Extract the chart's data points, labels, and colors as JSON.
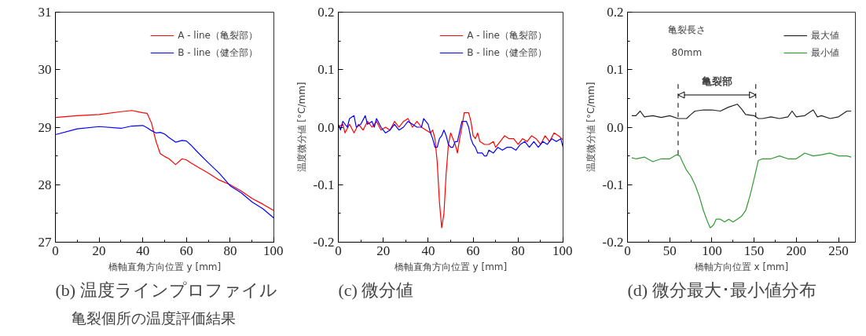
{
  "chart_data": [
    {
      "type": "line",
      "title": "(b) 温度ラインプロファイル",
      "xlabel": "橋軸直角方向位置 y [mm]",
      "xlim": [
        0,
        100
      ],
      "xticks": [
        0,
        20,
        40,
        60,
        80,
        100
      ],
      "ylim": [
        27,
        31
      ],
      "yticks": [
        27,
        28,
        29,
        30,
        31
      ],
      "legend": "top right",
      "grid": false,
      "annotations": [
        "亀裂個所の温度評価結果"
      ],
      "series": [
        {
          "name": "A - line（亀裂部）",
          "color": "#ff0000",
          "x": [
            0,
            10,
            20,
            30,
            35,
            40,
            42,
            44,
            46,
            48,
            50,
            52,
            55,
            58,
            60,
            62,
            65,
            70,
            75,
            80,
            85,
            90,
            95,
            100
          ],
          "values": [
            29.17,
            29.2,
            29.22,
            29.27,
            29.29,
            29.25,
            29.24,
            29.07,
            28.76,
            28.54,
            28.49,
            28.45,
            28.35,
            28.45,
            28.43,
            28.38,
            28.31,
            28.2,
            28.08,
            28.0,
            27.89,
            27.76,
            27.66,
            27.55
          ]
        },
        {
          "name": "B - line（健全部）",
          "color": "#0000ff",
          "x": [
            0,
            10,
            20,
            30,
            35,
            40,
            42,
            44,
            46,
            48,
            50,
            52,
            55,
            58,
            60,
            62,
            65,
            70,
            75,
            80,
            85,
            90,
            95,
            100
          ],
          "values": [
            28.87,
            28.97,
            29.01,
            28.98,
            29.02,
            29.03,
            28.99,
            28.94,
            28.9,
            28.91,
            28.88,
            28.82,
            28.74,
            28.77,
            28.76,
            28.69,
            28.57,
            28.38,
            28.2,
            27.98,
            27.86,
            27.7,
            27.58,
            27.42
          ]
        }
      ]
    },
    {
      "type": "line",
      "title": "(c) 微分値",
      "xlabel": "橋軸直角方向位置 y [mm]",
      "ylabel": "温度微分値 [°C/mm]",
      "xlim": [
        0,
        100
      ],
      "xticks": [
        0,
        20,
        40,
        60,
        80,
        100
      ],
      "ylim": [
        -0.2,
        0.2
      ],
      "yticks": [
        {
          "value": -0.2,
          "label": "-0.2"
        },
        {
          "value": -0.1,
          "label": "-0.1"
        },
        {
          "value": 0,
          "label": "0.0"
        },
        {
          "value": 0.1,
          "label": "0.1"
        },
        {
          "value": 0.2,
          "label": "0.2"
        }
      ],
      "legend": "top right",
      "grid": false,
      "series": [
        {
          "name": "A - line（亀裂部）",
          "color": "#ff0000",
          "x": [
            0,
            2,
            3,
            5,
            7,
            9,
            11,
            13,
            15,
            17,
            19,
            21,
            23,
            25,
            27,
            29,
            31,
            33,
            35,
            37,
            39,
            41,
            42,
            43,
            44,
            45,
            46,
            47,
            48,
            49,
            50,
            51,
            52,
            53,
            54,
            55,
            56,
            58,
            59,
            60,
            61,
            62,
            63,
            65,
            67,
            69,
            70,
            72,
            74,
            76,
            78,
            80,
            82,
            84,
            86,
            88,
            90,
            92,
            94,
            96,
            98,
            100
          ],
          "values": [
            0.0,
            0.005,
            -0.01,
            0.005,
            -0.01,
            0.005,
            -0.005,
            0.01,
            0.0,
            0.01,
            -0.005,
            0.0,
            -0.005,
            0.01,
            0.0,
            0.01,
            0.015,
            0.0,
            0.01,
            0.0,
            -0.005,
            -0.01,
            -0.005,
            -0.02,
            -0.06,
            -0.13,
            -0.175,
            -0.15,
            -0.08,
            -0.03,
            -0.01,
            -0.02,
            -0.03,
            -0.045,
            -0.02,
            0.0,
            0.025,
            0.025,
            0.01,
            -0.015,
            -0.02,
            -0.01,
            -0.025,
            -0.03,
            -0.03,
            -0.025,
            -0.035,
            -0.025,
            -0.015,
            -0.02,
            -0.02,
            -0.03,
            -0.02,
            -0.025,
            -0.015,
            -0.02,
            -0.03,
            -0.015,
            -0.025,
            -0.01,
            -0.015,
            -0.022
          ]
        },
        {
          "name": "B - line（健全部）",
          "color": "#0000ff",
          "x": [
            0,
            1,
            2,
            4,
            5,
            7,
            8,
            10,
            12,
            13,
            15,
            16,
            17,
            19,
            21,
            23,
            25,
            27,
            29,
            31,
            33,
            35,
            37,
            38,
            40,
            41,
            42,
            43,
            44,
            45,
            46,
            47,
            48,
            49,
            50,
            51,
            52,
            53,
            55,
            57,
            58,
            59,
            60,
            61,
            62,
            64,
            65,
            66,
            67,
            69,
            71,
            73,
            75,
            77,
            79,
            81,
            83,
            85,
            87,
            89,
            91,
            93,
            95,
            97,
            99,
            100
          ],
          "values": [
            0.005,
            -0.005,
            0.01,
            0.0,
            0.015,
            0.02,
            0.0,
            0.005,
            0.02,
            0.005,
            0.01,
            0.0,
            0.015,
            0.0,
            -0.01,
            -0.005,
            0.005,
            -0.005,
            0.0,
            0.01,
            0.005,
            0.0,
            0.0,
            0.015,
            0.005,
            -0.01,
            -0.02,
            -0.035,
            -0.035,
            -0.02,
            -0.015,
            -0.005,
            -0.015,
            -0.03,
            -0.035,
            -0.035,
            -0.025,
            -0.025,
            0.01,
            0.01,
            0.0,
            -0.02,
            -0.03,
            -0.035,
            -0.045,
            -0.045,
            -0.05,
            -0.05,
            -0.04,
            -0.045,
            -0.035,
            -0.04,
            -0.035,
            -0.035,
            -0.04,
            -0.03,
            -0.025,
            -0.035,
            -0.025,
            -0.035,
            -0.025,
            -0.03,
            -0.02,
            -0.025,
            -0.02,
            -0.035
          ]
        }
      ]
    },
    {
      "type": "line",
      "title": "(d) 微分最大･最小値分布",
      "xlabel": "橋軸方向位置 x [mm]",
      "ylabel": "温度微分値 [°C/mm]",
      "xlim": [
        0,
        270
      ],
      "xticks": [
        0,
        50,
        100,
        150,
        200,
        250
      ],
      "ylim": [
        -0.2,
        0.2
      ],
      "yticks": [
        {
          "value": -0.2,
          "label": "-0.2"
        },
        {
          "value": -0.1,
          "label": "-0.1"
        },
        {
          "value": 0,
          "label": "0.0"
        },
        {
          "value": 0.1,
          "label": "0.1"
        },
        {
          "value": 0.2,
          "label": "0.2"
        }
      ],
      "legend": "top right",
      "grid": false,
      "annotations": [
        "亀裂長さ",
        "80mm",
        "亀裂部"
      ],
      "ref_lines": [
        {
          "axis": "x",
          "value": 60,
          "line_style": "dashed",
          "color": "#000000"
        },
        {
          "axis": "x",
          "value": 152,
          "line_style": "dashed",
          "color": "#000000"
        }
      ],
      "series": [
        {
          "name": "最大値",
          "color": "#222222",
          "x": [
            5,
            10,
            15,
            20,
            30,
            40,
            50,
            60,
            70,
            75,
            80,
            90,
            100,
            110,
            120,
            130,
            135,
            140,
            150,
            155,
            160,
            170,
            180,
            190,
            195,
            200,
            210,
            220,
            225,
            230,
            240,
            250,
            260,
            265
          ],
          "values": [
            0.02,
            0.02,
            0.028,
            0.018,
            0.02,
            0.017,
            0.02,
            0.015,
            0.015,
            0.022,
            0.028,
            0.03,
            0.03,
            0.028,
            0.035,
            0.04,
            0.032,
            0.022,
            0.02,
            0.015,
            0.015,
            0.018,
            0.015,
            0.018,
            0.028,
            0.018,
            0.02,
            0.03,
            0.018,
            0.02,
            0.015,
            0.018,
            0.028,
            0.028
          ]
        },
        {
          "name": "最小値",
          "color": "#339933",
          "x": [
            5,
            10,
            20,
            30,
            40,
            50,
            58,
            62,
            65,
            70,
            75,
            80,
            85,
            90,
            95,
            98,
            102,
            105,
            110,
            115,
            120,
            125,
            130,
            135,
            140,
            145,
            150,
            155,
            160,
            170,
            180,
            190,
            200,
            210,
            220,
            230,
            240,
            250,
            260,
            265
          ],
          "values": [
            -0.053,
            -0.055,
            -0.052,
            -0.06,
            -0.055,
            -0.055,
            -0.048,
            -0.05,
            -0.06,
            -0.075,
            -0.085,
            -0.1,
            -0.12,
            -0.145,
            -0.165,
            -0.175,
            -0.17,
            -0.16,
            -0.16,
            -0.165,
            -0.16,
            -0.165,
            -0.16,
            -0.155,
            -0.145,
            -0.12,
            -0.09,
            -0.058,
            -0.055,
            -0.055,
            -0.05,
            -0.055,
            -0.055,
            -0.045,
            -0.05,
            -0.048,
            -0.045,
            -0.05,
            -0.05,
            -0.052
          ]
        }
      ]
    }
  ]
}
